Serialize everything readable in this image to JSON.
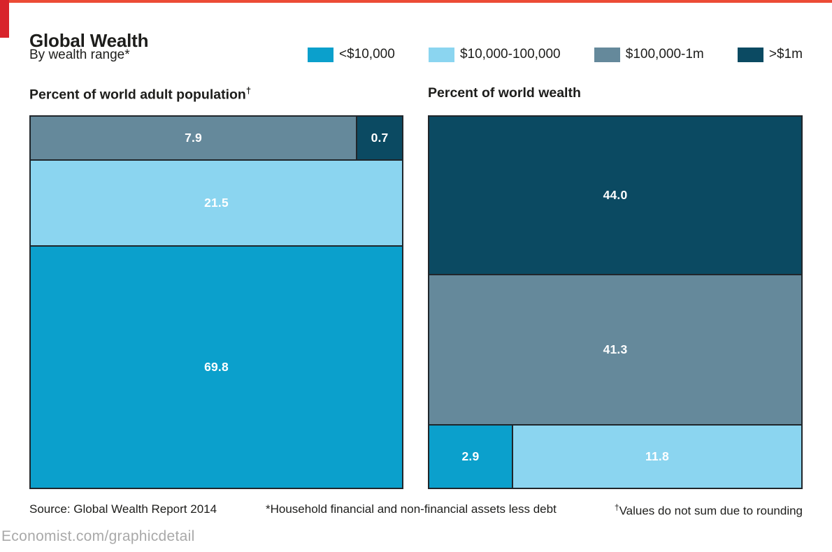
{
  "brand": {
    "red_line_color": "#ec4b35",
    "red_block_color": "#d8242b"
  },
  "header": {
    "title": "Global Wealth",
    "subtitle": "By wealth range*"
  },
  "legend": {
    "items": [
      {
        "label": "<$10,000",
        "color": "#0ba0cc"
      },
      {
        "label": "$10,000-100,000",
        "color": "#8bd5f0"
      },
      {
        "label": "$100,000-1m",
        "color": "#65899b"
      },
      {
        "label": ">$1m",
        "color": "#0b4a62"
      }
    ]
  },
  "panels": {
    "left": {
      "title_text": "Percent of world adult population",
      "title_sup": "†"
    },
    "right": {
      "title_text": "Percent of world wealth",
      "title_sup": ""
    }
  },
  "chart_data": [
    {
      "type": "mosaic",
      "title": "Percent of world adult population†",
      "unit": "percent",
      "note": "rows stacked top to bottom, area proportional to value",
      "rows": [
        {
          "weight": 8.6,
          "cells": [
            {
              "category": "$100,000-1m",
              "value": 7.9,
              "label": "7.9",
              "color": "#65899b"
            },
            {
              "category": ">$1m",
              "value": 0.7,
              "label": "0.7",
              "color": "#0b4a62"
            }
          ]
        },
        {
          "weight": 21.5,
          "cells": [
            {
              "category": "$10,000-100,000",
              "value": 21.5,
              "label": "21.5",
              "color": "#8bd5f0"
            }
          ]
        },
        {
          "weight": 69.8,
          "cells": [
            {
              "category": "<$10,000",
              "value": 69.8,
              "label": "69.8",
              "color": "#0ba0cc"
            }
          ]
        }
      ]
    },
    {
      "type": "mosaic",
      "title": "Percent of world wealth",
      "unit": "percent",
      "note": "rows stacked top to bottom, area proportional to value",
      "rows": [
        {
          "weight": 44.0,
          "cells": [
            {
              "category": ">$1m",
              "value": 44.0,
              "label": "44.0",
              "color": "#0b4a62"
            }
          ]
        },
        {
          "weight": 41.3,
          "cells": [
            {
              "category": "$100,000-1m",
              "value": 41.3,
              "label": "41.3",
              "color": "#65899b"
            }
          ]
        },
        {
          "weight": 14.7,
          "cells": [
            {
              "category": "<$10,000",
              "value": 2.9,
              "label": "2.9",
              "color": "#0ba0cc"
            },
            {
              "category": "$10,000-100,000",
              "value": 11.8,
              "label": "11.8",
              "color": "#8bd5f0"
            }
          ]
        }
      ]
    }
  ],
  "footer": {
    "source": "Source: Global Wealth Report 2014",
    "note1": "*Household financial and non-financial assets less debt",
    "note2_sup": "†",
    "note2_text": "Values do not sum due to rounding"
  },
  "site": "Economist.com/graphicdetail"
}
